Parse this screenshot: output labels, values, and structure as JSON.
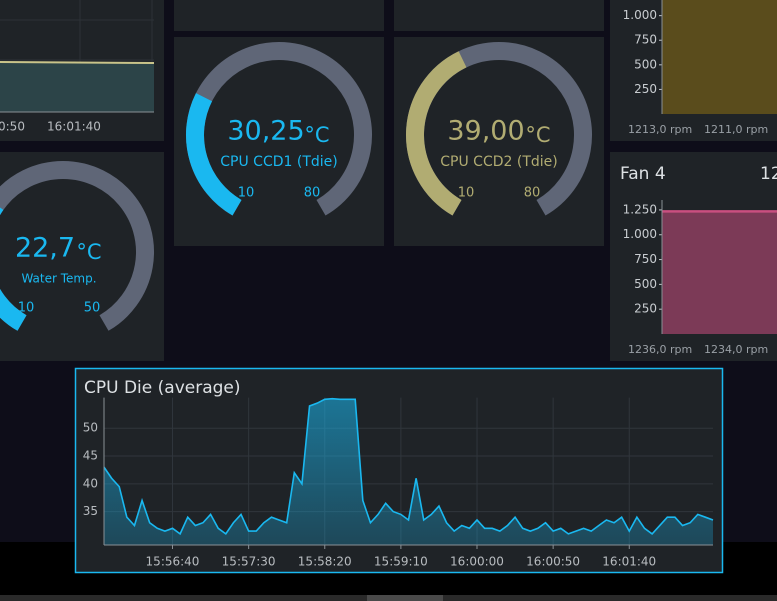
{
  "top_left_chart": {
    "x_tick_labels": [
      "0:50",
      "16:01:40"
    ]
  },
  "gauges": [
    {
      "value": 30.25,
      "value_label": "30,25",
      "unit": "°C",
      "label": "CPU CCD1 (Tdie)",
      "min": 10,
      "max": 80,
      "color": "#1ab8f0"
    },
    {
      "value": 39.0,
      "value_label": "39,00",
      "unit": "°C",
      "label": "CPU CCD2 (Tdie)",
      "min": 10,
      "max": 80,
      "color": "#b1ac72"
    },
    {
      "value": 22.7,
      "value_label": "22,7",
      "unit": "°C",
      "label": "Water Temp.",
      "min": 10,
      "max": 50,
      "color": "#1ab8f0"
    }
  ],
  "fans": [
    {
      "ylim": [
        0,
        1220
      ],
      "yticks": [
        {
          "value": 1000,
          "label": "1.000"
        },
        750,
        500,
        250
      ],
      "value": 1213,
      "color": "#8a7014",
      "readings": [
        "1213,0 rpm",
        "1211,0 rpm"
      ]
    },
    {
      "title": "Fan 4",
      "current": "12",
      "ylim": [
        0,
        1350
      ],
      "yticks": [
        {
          "value": 1250,
          "label": "1.250"
        },
        {
          "value": 1000,
          "label": "1.000"
        },
        750,
        500,
        250
      ],
      "value": 1236,
      "color": "#c94f80",
      "readings": [
        "1236,0 rpm",
        "1234,0 rpm"
      ]
    }
  ],
  "chart_data": {
    "type": "area",
    "title": "CPU Die (average)",
    "color": "#1ab8f0",
    "x": [
      "15:55:55",
      "15:56:00",
      "15:56:05",
      "15:56:10",
      "15:56:15",
      "15:56:20",
      "15:56:25",
      "15:56:30",
      "15:56:35",
      "15:56:40",
      "15:56:45",
      "15:56:50",
      "15:56:55",
      "15:57:00",
      "15:57:05",
      "15:57:10",
      "15:57:15",
      "15:57:20",
      "15:57:25",
      "15:57:30",
      "15:57:35",
      "15:57:40",
      "15:57:45",
      "15:57:50",
      "15:57:55",
      "15:58:00",
      "15:58:05",
      "15:58:10",
      "15:58:15",
      "15:58:20",
      "15:58:25",
      "15:58:30",
      "15:58:35",
      "15:58:40",
      "15:58:45",
      "15:58:50",
      "15:58:55",
      "15:59:00",
      "15:59:05",
      "15:59:10",
      "15:59:15",
      "15:59:20",
      "15:59:25",
      "15:59:30",
      "15:59:35",
      "15:59:40",
      "15:59:45",
      "15:59:50",
      "15:59:55",
      "16:00:00",
      "16:00:05",
      "16:00:10",
      "16:00:15",
      "16:00:20",
      "16:00:25",
      "16:00:30",
      "16:00:35",
      "16:00:40",
      "16:00:45",
      "16:00:50",
      "16:00:55",
      "16:01:00",
      "16:01:05",
      "16:01:10",
      "16:01:15",
      "16:01:20",
      "16:01:25",
      "16:01:30",
      "16:01:35",
      "16:01:40",
      "16:01:45",
      "16:01:50",
      "16:01:55",
      "16:02:00",
      "16:02:05",
      "16:02:10",
      "16:02:15",
      "16:02:20",
      "16:02:25",
      "16:02:30",
      "16:02:35"
    ],
    "values": [
      43,
      41,
      39.5,
      34,
      32.5,
      37,
      33,
      32,
      31.5,
      32,
      31,
      34,
      32.5,
      33,
      34.5,
      32,
      31,
      33,
      34.5,
      31.5,
      31.5,
      33,
      34,
      33.5,
      33,
      42,
      40,
      54,
      54.5,
      55.2,
      55.3,
      55.2,
      55.2,
      55.2,
      37,
      33,
      34.5,
      36.5,
      35,
      34.5,
      33.5,
      41,
      33.5,
      34.5,
      36,
      33,
      31.5,
      32.5,
      32,
      33.5,
      32,
      32,
      31.5,
      32.5,
      34,
      32,
      31.5,
      32,
      33,
      31.5,
      32,
      31,
      31.5,
      32,
      31.5,
      32.5,
      33.5,
      33,
      34,
      31.5,
      34,
      32,
      31,
      32.5,
      34,
      34,
      32.5,
      33,
      34.5,
      34,
      33.5
    ],
    "xlim": [
      "15:55:55",
      "16:02:35"
    ],
    "xticks": [
      "15:56:40",
      "15:57:30",
      "15:58:20",
      "15:59:10",
      "16:00:00",
      "16:00:50",
      "16:01:40"
    ],
    "ylim": [
      29,
      55.5
    ],
    "yticks": [
      35,
      40,
      45,
      50
    ],
    "grid": true
  }
}
